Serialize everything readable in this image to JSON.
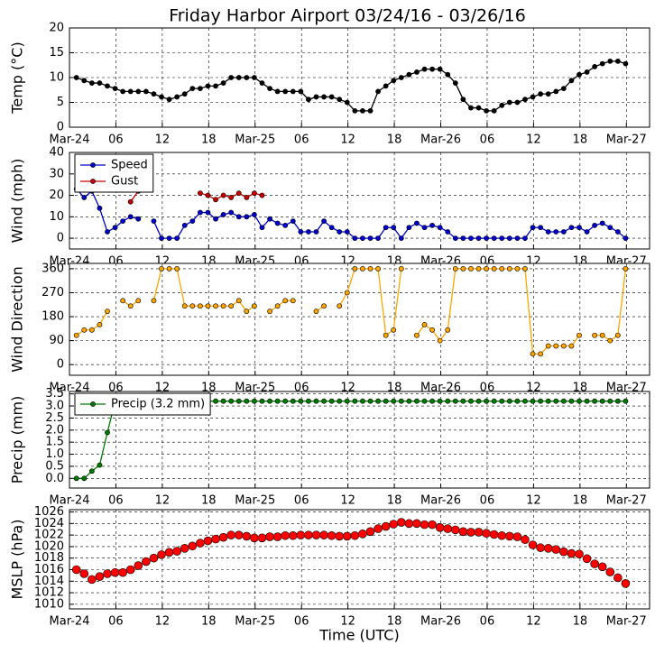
{
  "chart_data": [
    {
      "type": "line",
      "title": "Friday Harbor Airport 03/24/16 - 03/26/16",
      "ylabel": "Temp (°C)",
      "x": [
        0.9,
        1.9,
        2.9,
        3.9,
        4.9,
        5.9,
        6.9,
        7.9,
        8.9,
        9.9,
        10.9,
        11.9,
        12.9,
        13.9,
        14.9,
        15.9,
        16.9,
        17.9,
        18.9,
        19.9,
        20.9,
        21.9,
        22.9,
        23.9,
        24.9,
        25.9,
        26.9,
        27.9,
        28.9,
        29.9,
        30.9,
        31.9,
        32.9,
        33.9,
        34.9,
        35.9,
        36.9,
        37.9,
        38.9,
        39.9,
        40.9,
        41.9,
        42.9,
        43.9,
        44.9,
        45.9,
        46.9,
        47.9,
        48.9,
        49.9,
        50.9,
        51.9,
        52.9,
        53.9,
        54.9,
        55.9,
        56.9,
        57.9,
        58.9,
        59.9,
        60.9,
        61.9,
        62.9,
        63.9,
        64.9,
        65.9,
        66.9,
        67.9,
        68.9,
        69.9,
        70.9,
        71.9
      ],
      "series": [
        {
          "color": "#000000",
          "values": [
            10.0,
            9.4,
            8.9,
            8.9,
            8.3,
            7.8,
            7.2,
            7.2,
            7.2,
            7.2,
            6.7,
            6.1,
            5.6,
            6.1,
            6.7,
            7.8,
            7.8,
            8.3,
            8.3,
            8.9,
            10.0,
            10.0,
            10.0,
            10.0,
            8.9,
            7.8,
            7.2,
            7.2,
            7.2,
            7.2,
            5.6,
            6.1,
            6.1,
            6.1,
            5.6,
            5.0,
            3.3,
            3.3,
            3.3,
            7.2,
            8.3,
            9.4,
            10.0,
            10.6,
            11.1,
            11.7,
            11.7,
            11.7,
            10.6,
            8.9,
            5.6,
            3.9,
            3.9,
            3.3,
            3.3,
            4.4,
            5.0,
            5.0,
            5.6,
            6.1,
            6.7,
            6.7,
            7.2,
            7.8,
            9.4,
            10.6,
            11.1,
            12.2,
            12.8,
            13.3,
            13.3,
            12.8
          ]
        }
      ],
      "xlim": [
        0,
        75
      ],
      "xticks": [
        {
          "value": 0,
          "label": "Mar-24"
        },
        {
          "value": 6,
          "label": "06"
        },
        12,
        18,
        {
          "value": 24,
          "label": "Mar-25"
        },
        {
          "value": 30,
          "label": "06"
        },
        {
          "value": 36,
          "label": "12"
        },
        {
          "value": 42,
          "label": "18"
        },
        {
          "value": 48,
          "label": "Mar-26"
        },
        {
          "value": 54,
          "label": "06"
        },
        {
          "value": 60,
          "label": "12"
        },
        {
          "value": 66,
          "label": "18"
        },
        {
          "value": 72,
          "label": "Mar-27"
        }
      ],
      "ylim": [
        0,
        20
      ],
      "yticks": [
        0,
        5,
        10,
        15,
        20
      ],
      "grid": true
    },
    {
      "type": "line",
      "ylabel": "Wind (mph)",
      "legend": "upper left",
      "x": [
        0.9,
        1.9,
        2.9,
        3.9,
        4.9,
        5.9,
        6.9,
        7.9,
        8.9,
        9.9,
        10.9,
        11.9,
        12.9,
        13.9,
        14.9,
        15.9,
        16.9,
        17.9,
        18.9,
        19.9,
        20.9,
        21.9,
        22.9,
        23.9,
        24.9,
        25.9,
        26.9,
        27.9,
        28.9,
        29.9,
        30.9,
        31.9,
        32.9,
        33.9,
        34.9,
        35.9,
        36.9,
        37.9,
        38.9,
        39.9,
        40.9,
        41.9,
        42.9,
        43.9,
        44.9,
        45.9,
        46.9,
        47.9,
        48.9,
        49.9,
        50.9,
        51.9,
        52.9,
        53.9,
        54.9,
        55.9,
        56.9,
        57.9,
        58.9,
        59.9,
        60.9,
        61.9,
        62.9,
        63.9,
        64.9,
        65.9,
        66.9,
        67.9,
        68.9,
        69.9,
        70.9,
        71.9
      ],
      "series": [
        {
          "name": "Speed",
          "color": "#0000cc",
          "values": [
            23,
            19,
            22,
            14,
            3,
            5,
            8,
            10,
            9,
            null,
            8,
            0,
            0,
            0,
            6,
            8,
            12,
            12,
            9,
            11,
            12,
            10,
            10,
            11,
            5,
            9,
            7,
            6,
            8,
            3,
            3,
            3,
            8,
            5,
            3,
            3,
            0,
            0,
            0,
            0,
            5,
            5,
            0,
            5,
            7,
            5,
            6,
            5,
            3,
            0,
            0,
            0,
            0,
            0,
            0,
            0,
            0,
            0,
            0,
            5,
            5,
            3,
            3,
            3,
            5,
            5,
            3,
            6,
            7,
            5,
            3,
            0
          ]
        },
        {
          "name": "Gust",
          "color": "#cc0000",
          "values": [
            null,
            null,
            null,
            null,
            null,
            null,
            null,
            17,
            22,
            null,
            null,
            null,
            null,
            null,
            null,
            null,
            21,
            20,
            18,
            20,
            19,
            21,
            19,
            21,
            20,
            null,
            null,
            null,
            null,
            null,
            null,
            null,
            null,
            null,
            null,
            null,
            null,
            null,
            null,
            null,
            null,
            null,
            null,
            null,
            null,
            null,
            null,
            null,
            null,
            null,
            null,
            null,
            null,
            null,
            null,
            null,
            null,
            null,
            null,
            null,
            null,
            null,
            null,
            null,
            null,
            null,
            null,
            null,
            null,
            null,
            null,
            null
          ]
        }
      ],
      "xlim": [
        0,
        75
      ],
      "xticks": [
        {
          "value": 0,
          "label": "Mar-24"
        },
        {
          "value": 6,
          "label": "06"
        },
        12,
        18,
        {
          "value": 24,
          "label": "Mar-25"
        },
        {
          "value": 30,
          "label": "06"
        },
        {
          "value": 36,
          "label": "12"
        },
        {
          "value": 42,
          "label": "18"
        },
        {
          "value": 48,
          "label": "Mar-26"
        },
        {
          "value": 54,
          "label": "06"
        },
        {
          "value": 60,
          "label": "12"
        },
        {
          "value": 66,
          "label": "18"
        },
        {
          "value": 72,
          "label": "Mar-27"
        }
      ],
      "ylim": [
        -5,
        40
      ],
      "yticks": [
        0,
        10,
        20,
        30,
        40
      ],
      "grid": true
    },
    {
      "type": "line",
      "ylabel": "Wind Direction",
      "x": [
        0.9,
        1.9,
        2.9,
        3.9,
        4.9,
        5.9,
        6.9,
        7.9,
        8.9,
        9.9,
        10.9,
        11.9,
        12.9,
        13.9,
        14.9,
        15.9,
        16.9,
        17.9,
        18.9,
        19.9,
        20.9,
        21.9,
        22.9,
        23.9,
        24.9,
        25.9,
        26.9,
        27.9,
        28.9,
        29.9,
        30.9,
        31.9,
        32.9,
        33.9,
        34.9,
        35.9,
        36.9,
        37.9,
        38.9,
        39.9,
        40.9,
        41.9,
        42.9,
        43.9,
        44.9,
        45.9,
        46.9,
        47.9,
        48.9,
        49.9,
        50.9,
        51.9,
        52.9,
        53.9,
        54.9,
        55.9,
        56.9,
        57.9,
        58.9,
        59.9,
        60.9,
        61.9,
        62.9,
        63.9,
        64.9,
        65.9,
        66.9,
        67.9,
        68.9,
        69.9,
        70.9,
        71.9
      ],
      "series": [
        {
          "color": "#ffa500",
          "values": [
            110,
            130,
            130,
            150,
            200,
            null,
            240,
            220,
            240,
            null,
            240,
            360,
            360,
            360,
            220,
            220,
            220,
            220,
            220,
            220,
            220,
            240,
            200,
            220,
            null,
            200,
            220,
            240,
            240,
            null,
            null,
            200,
            220,
            null,
            220,
            270,
            360,
            360,
            360,
            360,
            110,
            130,
            360,
            null,
            110,
            150,
            130,
            90,
            130,
            360,
            360,
            360,
            360,
            360,
            360,
            360,
            360,
            360,
            360,
            40,
            40,
            70,
            70,
            70,
            70,
            110,
            null,
            110,
            110,
            90,
            110,
            360
          ]
        }
      ],
      "xlim": [
        0,
        75
      ],
      "xticks": [
        {
          "value": 0,
          "label": "Mar-24"
        },
        {
          "value": 6,
          "label": "06"
        },
        12,
        18,
        {
          "value": 24,
          "label": "Mar-25"
        },
        {
          "value": 30,
          "label": "06"
        },
        {
          "value": 36,
          "label": "12"
        },
        {
          "value": 42,
          "label": "18"
        },
        {
          "value": 48,
          "label": "Mar-26"
        },
        {
          "value": 54,
          "label": "06"
        },
        {
          "value": 60,
          "label": "12"
        },
        {
          "value": 66,
          "label": "18"
        },
        {
          "value": 72,
          "label": "Mar-27"
        }
      ],
      "ylim": [
        -40,
        380
      ],
      "yticks": [
        0,
        90,
        180,
        270,
        360
      ],
      "grid": true
    },
    {
      "type": "line",
      "ylabel": "Precip (mm)",
      "legend": "upper left",
      "x": [
        0.9,
        1.9,
        2.9,
        3.9,
        4.9,
        5.9,
        6.9,
        7.9,
        8.9,
        9.9,
        10.9,
        11.9,
        12.9,
        13.9,
        14.9,
        15.9,
        16.9,
        17.9,
        18.9,
        19.9,
        20.9,
        21.9,
        22.9,
        23.9,
        24.9,
        25.9,
        26.9,
        27.9,
        28.9,
        29.9,
        30.9,
        31.9,
        32.9,
        33.9,
        34.9,
        35.9,
        36.9,
        37.9,
        38.9,
        39.9,
        40.9,
        41.9,
        42.9,
        43.9,
        44.9,
        45.9,
        46.9,
        47.9,
        48.9,
        49.9,
        50.9,
        51.9,
        52.9,
        53.9,
        54.9,
        55.9,
        56.9,
        57.9,
        58.9,
        59.9,
        60.9,
        61.9,
        62.9,
        63.9,
        64.9,
        65.9,
        66.9,
        67.9,
        68.9,
        69.9,
        70.9,
        71.9
      ],
      "series": [
        {
          "name": "Precip (3.2 mm)",
          "color": "#007a00",
          "values": [
            0,
            0,
            0.3,
            0.55,
            1.9,
            3.2,
            3.2,
            3.2,
            3.2,
            3.2,
            3.2,
            3.2,
            3.2,
            3.2,
            3.2,
            3.2,
            3.2,
            3.2,
            3.2,
            3.2,
            3.2,
            3.2,
            3.2,
            3.2,
            3.2,
            3.2,
            3.2,
            3.2,
            3.2,
            3.2,
            3.2,
            3.2,
            3.2,
            3.2,
            3.2,
            3.2,
            3.2,
            3.2,
            3.2,
            3.2,
            3.2,
            3.2,
            3.2,
            3.2,
            3.2,
            3.2,
            3.2,
            3.2,
            3.2,
            3.2,
            3.2,
            3.2,
            3.2,
            3.2,
            3.2,
            3.2,
            3.2,
            3.2,
            3.2,
            3.2,
            3.2,
            3.2,
            3.2,
            3.2,
            3.2,
            3.2,
            3.2,
            3.2,
            3.2,
            3.2,
            3.2,
            3.2
          ]
        }
      ],
      "xlim": [
        0,
        75
      ],
      "xticks": [
        {
          "value": 0,
          "label": "Mar-24"
        },
        {
          "value": 6,
          "label": "06"
        },
        12,
        18,
        {
          "value": 24,
          "label": "Mar-25"
        },
        {
          "value": 30,
          "label": "06"
        },
        {
          "value": 36,
          "label": "12"
        },
        {
          "value": 42,
          "label": "18"
        },
        {
          "value": 48,
          "label": "Mar-26"
        },
        {
          "value": 54,
          "label": "06"
        },
        {
          "value": 60,
          "label": "12"
        },
        {
          "value": 66,
          "label": "18"
        },
        {
          "value": 72,
          "label": "Mar-27"
        }
      ],
      "ylim": [
        -0.4,
        3.6
      ],
      "yticks": [
        {
          "value": 0,
          "label": "0.0"
        },
        0.5,
        {
          "value": 1,
          "label": "1.0"
        },
        1.5,
        {
          "value": 2,
          "label": "2.0"
        },
        2.5,
        {
          "value": 3,
          "label": "3.0"
        },
        3.5
      ],
      "grid": true
    },
    {
      "type": "scatter",
      "ylabel": "MSLP (hPa)",
      "xlabel": "Time (UTC)",
      "x": [
        0.9,
        1.9,
        2.9,
        3.9,
        4.9,
        5.9,
        6.9,
        7.9,
        8.9,
        9.9,
        10.9,
        11.9,
        12.9,
        13.9,
        14.9,
        15.9,
        16.9,
        17.9,
        18.9,
        19.9,
        20.9,
        21.9,
        22.9,
        23.9,
        24.9,
        25.9,
        26.9,
        27.9,
        28.9,
        29.9,
        30.9,
        31.9,
        32.9,
        33.9,
        34.9,
        35.9,
        36.9,
        37.9,
        38.9,
        39.9,
        40.9,
        41.9,
        42.9,
        43.9,
        44.9,
        45.9,
        46.9,
        47.9,
        48.9,
        49.9,
        50.9,
        51.9,
        52.9,
        53.9,
        54.9,
        55.9,
        56.9,
        57.9,
        58.9,
        59.9,
        60.9,
        61.9,
        62.9,
        63.9,
        64.9,
        65.9,
        66.9,
        67.9,
        68.9,
        69.9,
        70.9,
        71.9
      ],
      "series": [
        {
          "color": "#ff0000",
          "values": [
            1016.0,
            1015.3,
            1014.3,
            1014.8,
            1015.3,
            1015.5,
            1015.5,
            1016.0,
            1016.7,
            1017.4,
            1018.0,
            1018.6,
            1019.0,
            1019.2,
            1019.7,
            1020.1,
            1020.6,
            1021.0,
            1021.3,
            1021.6,
            1022.0,
            1022.0,
            1021.8,
            1021.5,
            1021.5,
            1021.7,
            1021.7,
            1021.9,
            1021.9,
            1022.0,
            1022.0,
            1022.0,
            1022.0,
            1021.9,
            1021.8,
            1021.8,
            1021.9,
            1022.2,
            1022.6,
            1023.1,
            1023.5,
            1023.9,
            1024.2,
            1024.0,
            1024.0,
            1023.8,
            1023.8,
            1023.3,
            1023.1,
            1022.9,
            1022.6,
            1022.5,
            1022.5,
            1022.3,
            1022.1,
            1021.9,
            1021.8,
            1021.7,
            1021.2,
            1020.3,
            1019.8,
            1019.7,
            1019.5,
            1019.1,
            1018.8,
            1018.7,
            1017.9,
            1017.0,
            1016.5,
            1015.6,
            1014.6,
            1013.6
          ]
        }
      ],
      "xlim": [
        0,
        75
      ],
      "xticks": [
        {
          "value": 0,
          "label": "Mar-24"
        },
        {
          "value": 6,
          "label": "06"
        },
        12,
        18,
        {
          "value": 24,
          "label": "Mar-25"
        },
        {
          "value": 30,
          "label": "06"
        },
        {
          "value": 36,
          "label": "12"
        },
        {
          "value": 42,
          "label": "18"
        },
        {
          "value": 48,
          "label": "Mar-26"
        },
        {
          "value": 54,
          "label": "06"
        },
        {
          "value": 60,
          "label": "12"
        },
        {
          "value": 66,
          "label": "18"
        },
        {
          "value": 72,
          "label": "Mar-27"
        }
      ],
      "ylim": [
        1009.2,
        1026.4
      ],
      "yticks": [
        1010,
        1012,
        1014,
        1016,
        1018,
        1020,
        1022,
        1024,
        1026
      ],
      "grid": true
    }
  ]
}
